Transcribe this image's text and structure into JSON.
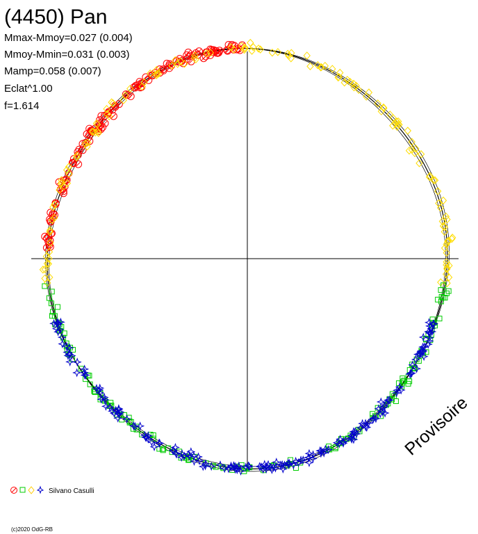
{
  "chart_data": {
    "type": "scatter",
    "title": "(4450) Pan",
    "stats": [
      "Mmax-Mmoy=0.027 (0.004)",
      "Mmoy-Mmin=0.031 (0.003)",
      "Mamp=0.058 (0.007)",
      "Eclat^1.00",
      "f=1.614"
    ],
    "watermark": "Provisoire",
    "observer": "Silvano Casulli",
    "copyright": "(c)2020 OdG-RB",
    "axes": {
      "grid": false,
      "crosshair": true
    },
    "plot_range": {
      "phase": [
        0,
        1
      ],
      "radius": [
        0.9,
        1.1
      ]
    },
    "series": [
      {
        "quadrant": "upper-left",
        "marker": "circle-slash",
        "color": "#ff0000",
        "phase_range": [
          0.75,
          1.0
        ],
        "count": 130
      },
      {
        "quadrant": "upper",
        "marker": "diamond",
        "color": "#ffff00",
        "phase_range": [
          0.73,
          0.27
        ],
        "count": 150
      },
      {
        "quadrant": "lower",
        "marker": "square",
        "color": "#00cc00",
        "phase_range": [
          0.27,
          0.73
        ],
        "count": 160
      },
      {
        "quadrant": "lower",
        "marker": "star",
        "color": "#0000cc",
        "phase_range": [
          0.3,
          0.7
        ],
        "count": 190
      }
    ],
    "legend": {
      "position": "bottom-left",
      "markers": [
        "circle-slash",
        "square",
        "diamond",
        "star"
      ]
    }
  }
}
